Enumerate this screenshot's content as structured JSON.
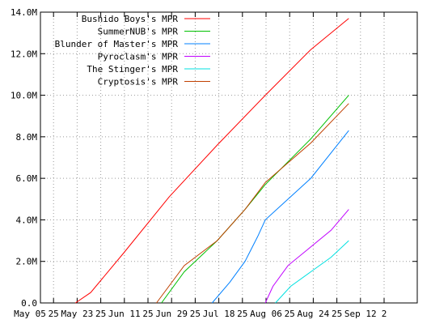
{
  "chart_data": {
    "type": "line",
    "title": "",
    "xlabel": "",
    "ylabel": "",
    "x_tick_labels": [
      "May 05",
      "25",
      "May 23",
      "25",
      "Jun 11",
      "25",
      "Jun 29",
      "25",
      "Jul 18",
      "25",
      "Aug 06",
      "25",
      "Aug 24",
      "25",
      "Sep 12",
      "2"
    ],
    "y_tick_labels": [
      "0.0",
      "2.0M",
      "4.0M",
      "6.0M",
      "8.0M",
      "10.0M",
      "12.0M",
      "14.0M"
    ],
    "ylim": [
      0,
      14000000
    ],
    "grid": true,
    "grid_style": "dotted",
    "legend_position": "top-right",
    "series": [
      {
        "name": "Bushido Boys's MPR",
        "color": "#ff0000",
        "points": [
          [
            "2023-05-23",
            0
          ],
          [
            "2023-05-29",
            500000
          ],
          [
            "2023-06-11",
            2400000
          ],
          [
            "2023-06-29",
            5100000
          ],
          [
            "2023-07-18",
            7600000
          ],
          [
            "2023-08-06",
            10000000
          ],
          [
            "2023-08-24",
            12200000
          ],
          [
            "2023-09-08",
            13700000
          ]
        ]
      },
      {
        "name": "SummerNUB's MPR",
        "color": "#00c000",
        "points": [
          [
            "2023-06-26",
            0
          ],
          [
            "2023-07-05",
            1500000
          ],
          [
            "2023-07-18",
            3000000
          ],
          [
            "2023-07-29",
            4500000
          ],
          [
            "2023-08-06",
            5700000
          ],
          [
            "2023-08-24",
            7900000
          ],
          [
            "2023-09-08",
            10000000
          ]
        ]
      },
      {
        "name": "Blunder of Master's MPR",
        "color": "#0080ff",
        "points": [
          [
            "2023-07-16",
            0
          ],
          [
            "2023-07-23",
            1000000
          ],
          [
            "2023-07-29",
            2000000
          ],
          [
            "2023-08-03",
            3200000
          ],
          [
            "2023-08-06",
            4000000
          ],
          [
            "2023-08-24",
            6000000
          ],
          [
            "2023-09-08",
            8300000
          ]
        ]
      },
      {
        "name": "Pyroclasm's MPR",
        "color": "#c000ff",
        "points": [
          [
            "2023-08-06",
            0
          ],
          [
            "2023-08-09",
            800000
          ],
          [
            "2023-08-15",
            1800000
          ],
          [
            "2023-08-24",
            2700000
          ],
          [
            "2023-09-01",
            3500000
          ],
          [
            "2023-09-08",
            4500000
          ]
        ]
      },
      {
        "name": "The Stinger's MPR",
        "color": "#00e0e0",
        "points": [
          [
            "2023-08-10",
            0
          ],
          [
            "2023-08-16",
            800000
          ],
          [
            "2023-08-24",
            1500000
          ],
          [
            "2023-09-01",
            2200000
          ],
          [
            "2023-09-08",
            3000000
          ]
        ]
      },
      {
        "name": "Cryptosis's MPR",
        "color": "#c04000",
        "points": [
          [
            "2023-06-24",
            0
          ],
          [
            "2023-07-05",
            1800000
          ],
          [
            "2023-07-18",
            3000000
          ],
          [
            "2023-07-29",
            4500000
          ],
          [
            "2023-08-06",
            5800000
          ],
          [
            "2023-08-24",
            7700000
          ],
          [
            "2023-09-08",
            9600000
          ]
        ]
      }
    ]
  }
}
